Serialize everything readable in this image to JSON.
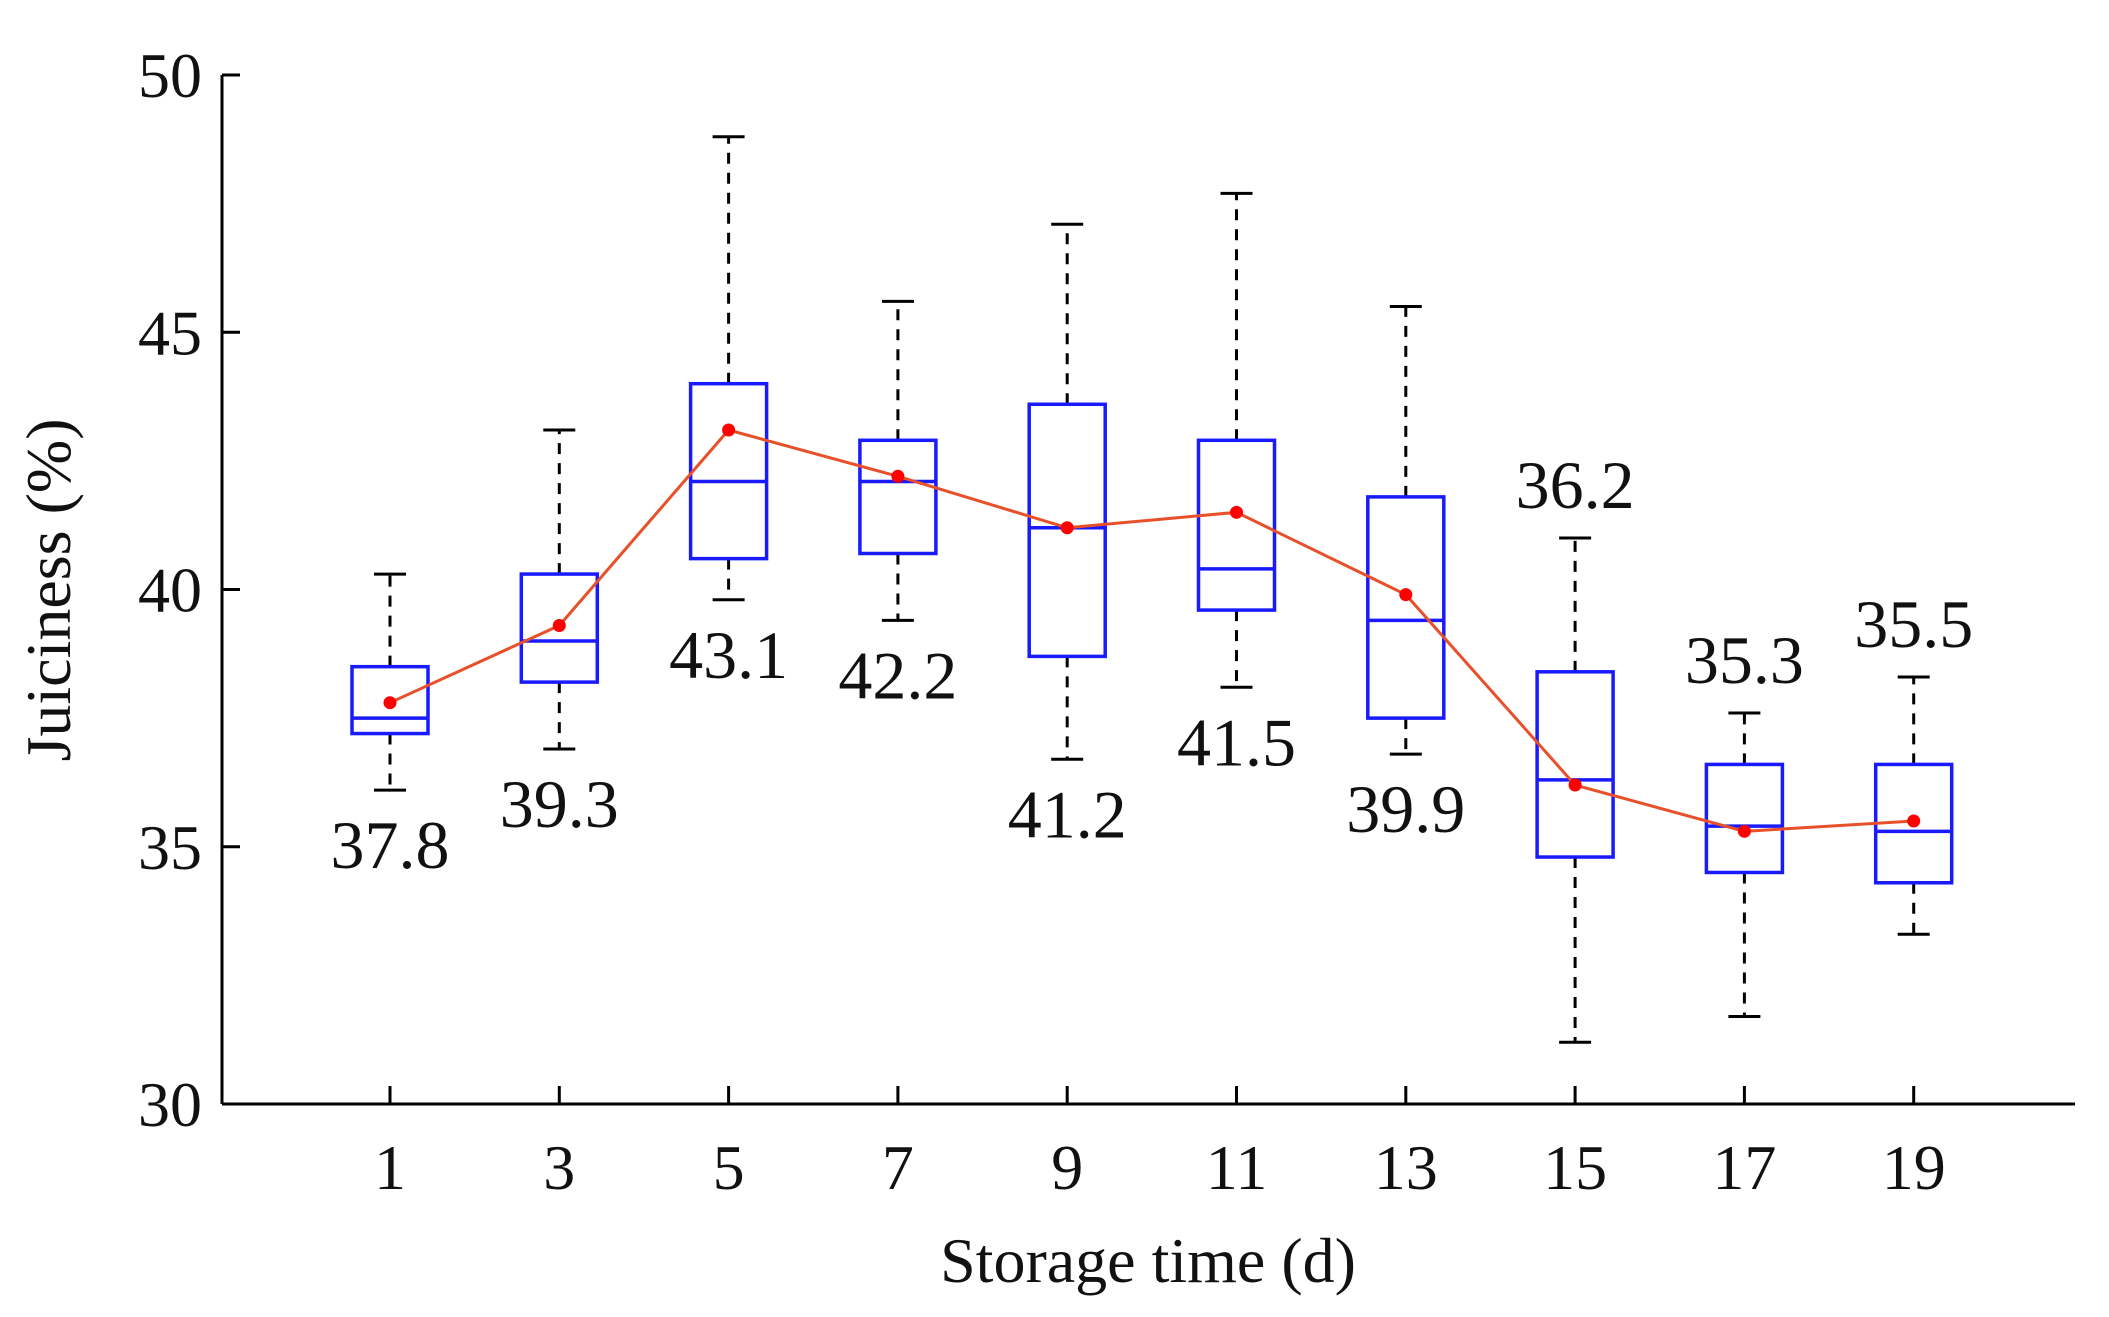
{
  "chart_data": {
    "type": "box",
    "xlabel": "Storage time (d)",
    "ylabel": "Juiciness (%)",
    "ylim": [
      30,
      50
    ],
    "yticks": [
      30,
      35,
      40,
      45,
      50
    ],
    "categories": [
      "1",
      "3",
      "5",
      "7",
      "9",
      "11",
      "13",
      "15",
      "17",
      "19"
    ],
    "x": [
      1,
      3,
      5,
      7,
      9,
      11,
      13,
      15,
      17,
      19
    ],
    "boxes": [
      {
        "min": 36.1,
        "q1": 37.2,
        "median": 37.5,
        "q3": 38.5,
        "max": 40.3
      },
      {
        "min": 36.9,
        "q1": 38.2,
        "median": 39.0,
        "q3": 40.3,
        "max": 43.1
      },
      {
        "min": 39.8,
        "q1": 40.6,
        "median": 42.1,
        "q3": 44.0,
        "max": 48.8
      },
      {
        "min": 39.4,
        "q1": 40.7,
        "median": 42.1,
        "q3": 42.9,
        "max": 45.6
      },
      {
        "min": 36.7,
        "q1": 38.7,
        "median": 41.2,
        "q3": 43.6,
        "max": 47.1
      },
      {
        "min": 38.1,
        "q1": 39.6,
        "median": 40.4,
        "q3": 42.9,
        "max": 47.7
      },
      {
        "min": 36.8,
        "q1": 37.5,
        "median": 39.4,
        "q3": 41.8,
        "max": 45.5
      },
      {
        "min": 31.2,
        "q1": 34.8,
        "median": 36.3,
        "q3": 38.4,
        "max": 41.0
      },
      {
        "min": 31.7,
        "q1": 34.5,
        "median": 35.4,
        "q3": 36.6,
        "max": 37.6
      },
      {
        "min": 33.3,
        "q1": 34.3,
        "median": 35.3,
        "q3": 36.6,
        "max": 38.3
      }
    ],
    "mean_series": {
      "values": [
        37.8,
        39.3,
        43.1,
        42.2,
        41.2,
        41.5,
        39.9,
        36.2,
        35.3,
        35.5
      ],
      "labels": [
        "37.8",
        "39.3",
        "43.1",
        "42.2",
        "41.2",
        "41.5",
        "39.9",
        "36.2",
        "35.3",
        "35.5"
      ],
      "label_position": [
        "below",
        "below",
        "below",
        "below",
        "below",
        "below",
        "below",
        "above",
        "above",
        "above"
      ]
    },
    "colors": {
      "box": "#1a1aff",
      "median": "#1a1aff",
      "whisker": "#000000",
      "mean_line": "#e8502a",
      "mean_marker": "#ff0000"
    },
    "grid": false,
    "legend": "none"
  }
}
